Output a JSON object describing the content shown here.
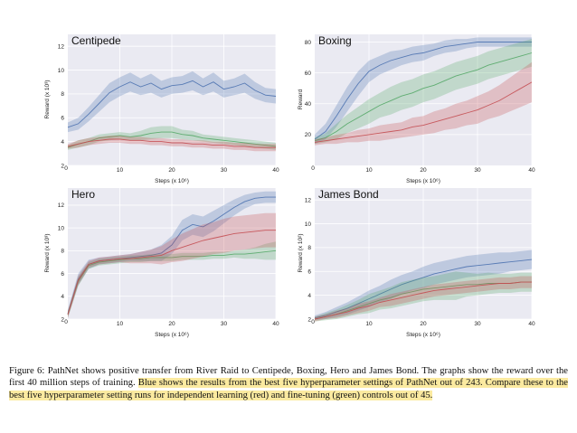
{
  "chart_data": [
    {
      "type": "line",
      "title": "Centipede",
      "xlabel": "Steps (x 10⁶)",
      "ylabel": "Reward (x 10³)",
      "xlim": [
        0,
        40
      ],
      "ylim": [
        2,
        13
      ],
      "xticks": [
        10,
        20,
        30,
        40
      ],
      "yticks": [
        2,
        4,
        6,
        8,
        10,
        12
      ],
      "x": [
        0,
        2,
        4,
        6,
        8,
        10,
        12,
        14,
        16,
        18,
        20,
        22,
        24,
        26,
        28,
        30,
        32,
        34,
        36,
        38,
        40
      ],
      "series": [
        {
          "color": "#4c72b0",
          "values": [
            5.2,
            5.5,
            6.3,
            7.2,
            8.1,
            8.6,
            9.0,
            8.6,
            8.9,
            8.4,
            8.7,
            8.8,
            9.1,
            8.6,
            9.0,
            8.4,
            8.6,
            8.9,
            8.3,
            7.9,
            7.8
          ],
          "spread": [
            0.4,
            0.5,
            0.6,
            0.7,
            0.8,
            0.8,
            0.8,
            0.7,
            0.8,
            0.7,
            0.7,
            0.7,
            0.8,
            0.7,
            0.8,
            0.7,
            0.7,
            0.8,
            0.7,
            0.6,
            0.6
          ]
        },
        {
          "color": "#55a868",
          "values": [
            3.5,
            3.8,
            4.0,
            4.3,
            4.4,
            4.5,
            4.4,
            4.5,
            4.7,
            4.8,
            4.8,
            4.6,
            4.5,
            4.3,
            4.2,
            4.1,
            4.0,
            3.9,
            3.8,
            3.7,
            3.6
          ],
          "spread": [
            0.2,
            0.3,
            0.3,
            0.3,
            0.3,
            0.3,
            0.3,
            0.4,
            0.5,
            0.5,
            0.5,
            0.4,
            0.4,
            0.3,
            0.3,
            0.3,
            0.3,
            0.3,
            0.3,
            0.3,
            0.3
          ]
        },
        {
          "color": "#c44e52",
          "values": [
            3.6,
            3.8,
            4.0,
            4.1,
            4.2,
            4.2,
            4.1,
            4.1,
            4.0,
            4.0,
            3.9,
            3.9,
            3.8,
            3.8,
            3.7,
            3.7,
            3.6,
            3.6,
            3.5,
            3.5,
            3.5
          ],
          "spread": [
            0.2,
            0.3,
            0.3,
            0.3,
            0.3,
            0.3,
            0.3,
            0.3,
            0.3,
            0.3,
            0.3,
            0.3,
            0.3,
            0.3,
            0.3,
            0.3,
            0.3,
            0.3,
            0.3,
            0.3,
            0.3
          ]
        }
      ]
    },
    {
      "type": "line",
      "title": "Boxing",
      "xlabel": "Steps (x 10⁶)",
      "ylabel": "Reward",
      "xlim": [
        0,
        40
      ],
      "ylim": [
        0,
        85
      ],
      "xticks": [
        10,
        20,
        30,
        40
      ],
      "yticks": [
        20,
        40,
        60,
        80
      ],
      "x": [
        0,
        2,
        4,
        6,
        8,
        10,
        12,
        14,
        16,
        18,
        20,
        22,
        24,
        26,
        28,
        30,
        32,
        34,
        36,
        38,
        40
      ],
      "series": [
        {
          "color": "#4c72b0",
          "values": [
            17,
            22,
            32,
            43,
            53,
            61,
            65,
            68,
            70,
            72,
            73,
            75,
            77,
            78,
            79,
            80,
            80,
            80,
            80,
            80,
            80
          ],
          "spread": [
            3,
            5,
            7,
            8,
            8,
            7,
            6,
            6,
            5,
            5,
            5,
            4,
            4,
            4,
            3,
            3,
            3,
            3,
            3,
            3,
            3
          ]
        },
        {
          "color": "#55a868",
          "values": [
            16,
            18,
            22,
            27,
            31,
            35,
            39,
            42,
            45,
            47,
            50,
            52,
            55,
            58,
            60,
            62,
            65,
            67,
            69,
            71,
            73
          ],
          "spread": [
            2,
            3,
            5,
            6,
            7,
            8,
            8,
            9,
            9,
            9,
            9,
            9,
            9,
            9,
            9,
            9,
            9,
            9,
            9,
            9,
            9
          ]
        },
        {
          "color": "#c44e52",
          "values": [
            15,
            16,
            17,
            18,
            19,
            20,
            21,
            22,
            23,
            25,
            26,
            28,
            30,
            32,
            34,
            36,
            39,
            42,
            46,
            50,
            54
          ],
          "spread": [
            2,
            2,
            3,
            3,
            4,
            4,
            5,
            5,
            5,
            6,
            6,
            7,
            7,
            8,
            8,
            9,
            9,
            10,
            11,
            12,
            13
          ]
        }
      ]
    },
    {
      "type": "line",
      "title": "Hero",
      "xlabel": "Steps (x 10⁶)",
      "ylabel": "Reward (x 10³)",
      "xlim": [
        0,
        40
      ],
      "ylim": [
        2,
        13.5
      ],
      "xticks": [
        10,
        20,
        30,
        40
      ],
      "yticks": [
        2,
        4,
        6,
        8,
        10,
        12
      ],
      "x": [
        0,
        2,
        4,
        6,
        8,
        10,
        12,
        14,
        16,
        18,
        20,
        22,
        24,
        26,
        28,
        30,
        32,
        34,
        36,
        38,
        40
      ],
      "series": [
        {
          "color": "#4c72b0",
          "values": [
            2.5,
            5.5,
            6.8,
            7.1,
            7.2,
            7.3,
            7.4,
            7.5,
            7.6,
            7.8,
            8.5,
            9.8,
            10.3,
            10.1,
            10.6,
            11.2,
            11.8,
            12.3,
            12.6,
            12.7,
            12.7
          ],
          "spread": [
            0.3,
            0.5,
            0.4,
            0.3,
            0.3,
            0.3,
            0.3,
            0.4,
            0.5,
            0.7,
            0.8,
            0.9,
            0.9,
            0.9,
            0.9,
            0.8,
            0.7,
            0.6,
            0.5,
            0.5,
            0.5
          ]
        },
        {
          "color": "#55a868",
          "values": [
            2.4,
            5.3,
            6.7,
            7.0,
            7.1,
            7.2,
            7.3,
            7.3,
            7.4,
            7.4,
            7.4,
            7.5,
            7.5,
            7.5,
            7.6,
            7.6,
            7.7,
            7.7,
            7.8,
            7.9,
            8.0
          ],
          "spread": [
            0.3,
            0.4,
            0.3,
            0.3,
            0.3,
            0.3,
            0.3,
            0.3,
            0.3,
            0.3,
            0.3,
            0.3,
            0.3,
            0.3,
            0.3,
            0.3,
            0.3,
            0.4,
            0.5,
            0.7,
            0.8
          ]
        },
        {
          "color": "#c44e52",
          "values": [
            2.4,
            5.4,
            6.8,
            7.1,
            7.2,
            7.3,
            7.3,
            7.4,
            7.5,
            7.6,
            8.0,
            8.3,
            8.6,
            8.9,
            9.1,
            9.3,
            9.5,
            9.6,
            9.7,
            9.8,
            9.8
          ],
          "spread": [
            0.3,
            0.4,
            0.3,
            0.3,
            0.3,
            0.3,
            0.4,
            0.5,
            0.6,
            0.8,
            1.0,
            1.2,
            1.3,
            1.4,
            1.4,
            1.5,
            1.5,
            1.5,
            1.5,
            1.5,
            1.5
          ]
        }
      ]
    },
    {
      "type": "line",
      "title": "James Bond",
      "xlabel": "Steps (x 10⁶)",
      "ylabel": "Reward (x 10²)",
      "xlim": [
        0,
        40
      ],
      "ylim": [
        2,
        13
      ],
      "xticks": [
        10,
        20,
        30,
        40
      ],
      "yticks": [
        2,
        4,
        6,
        8,
        10,
        12
      ],
      "x": [
        0,
        2,
        4,
        6,
        8,
        10,
        12,
        14,
        16,
        18,
        20,
        22,
        24,
        26,
        28,
        30,
        32,
        34,
        36,
        38,
        40
      ],
      "series": [
        {
          "color": "#4c72b0",
          "values": [
            2.1,
            2.3,
            2.6,
            2.9,
            3.3,
            3.7,
            4.1,
            4.5,
            4.9,
            5.2,
            5.5,
            5.8,
            6.0,
            6.2,
            6.4,
            6.5,
            6.6,
            6.7,
            6.8,
            6.9,
            7.0
          ],
          "spread": [
            0.2,
            0.3,
            0.4,
            0.5,
            0.6,
            0.7,
            0.7,
            0.8,
            0.8,
            0.8,
            0.9,
            0.9,
            0.9,
            0.9,
            0.9,
            0.9,
            0.9,
            0.9,
            0.8,
            0.8,
            0.8
          ]
        },
        {
          "color": "#55a868",
          "values": [
            2.0,
            2.2,
            2.4,
            2.7,
            3.0,
            3.3,
            3.6,
            3.8,
            4.1,
            4.3,
            4.5,
            4.6,
            4.7,
            4.8,
            4.9,
            4.9,
            5.0,
            5.0,
            5.0,
            5.1,
            5.1
          ],
          "spread": [
            0.2,
            0.3,
            0.4,
            0.5,
            0.6,
            0.8,
            0.8,
            0.9,
            1.0,
            1.0,
            1.0,
            1.0,
            1.1,
            1.2,
            1.0,
            0.9,
            0.9,
            0.8,
            0.8,
            0.8,
            0.8
          ]
        },
        {
          "color": "#c44e52",
          "values": [
            2.0,
            2.2,
            2.4,
            2.6,
            2.9,
            3.1,
            3.4,
            3.6,
            3.8,
            4.0,
            4.2,
            4.4,
            4.5,
            4.6,
            4.7,
            4.8,
            4.9,
            5.0,
            5.0,
            5.1,
            5.1
          ],
          "spread": [
            0.2,
            0.2,
            0.3,
            0.3,
            0.4,
            0.4,
            0.4,
            0.5,
            0.5,
            0.5,
            0.5,
            0.5,
            0.5,
            0.5,
            0.5,
            0.5,
            0.5,
            0.5,
            0.5,
            0.5,
            0.5
          ]
        }
      ]
    }
  ],
  "caption": {
    "plain": "Figure 6: PathNet shows positive transfer from River Raid to Centipede, Boxing, Hero and James Bond. The graphs show the reward over the first 40 million steps of training.",
    "highlighted": "Blue shows the results from the best five hyperparameter settings of PathNet out of 243. Compare these to the best five hyperparameter setting runs for independent learning (red) and fine-tuning (green) controls out of 45."
  }
}
